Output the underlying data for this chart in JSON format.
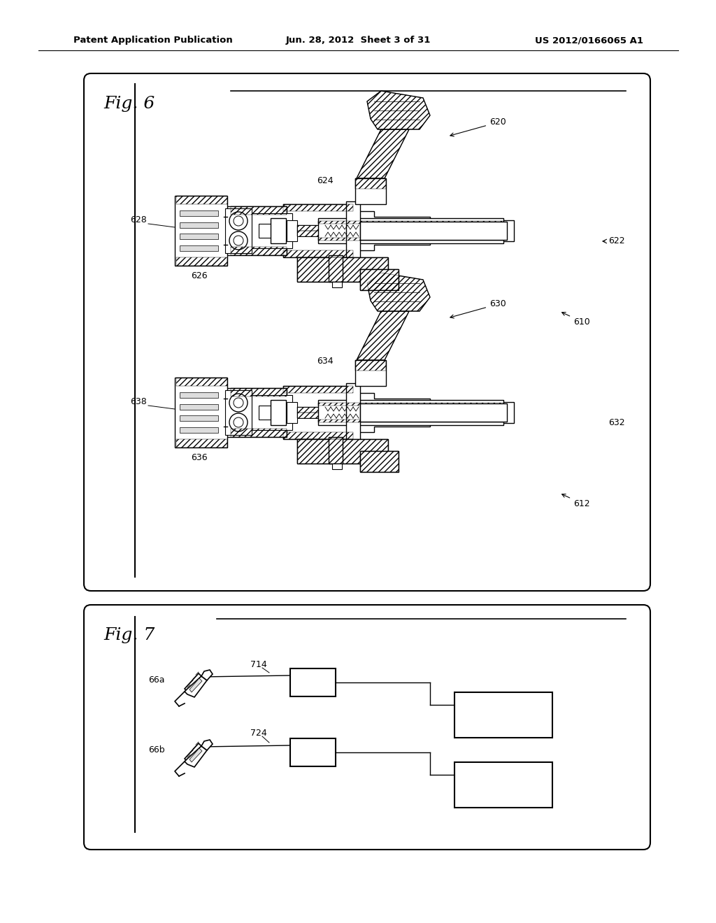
{
  "header_left": "Patent Application Publication",
  "header_center": "Jun. 28, 2012  Sheet 3 of 31",
  "header_right": "US 2012/0166065 A1",
  "fig6_label": "Fig. 6",
  "fig7_label": "Fig. 7",
  "background_color": "#ffffff"
}
